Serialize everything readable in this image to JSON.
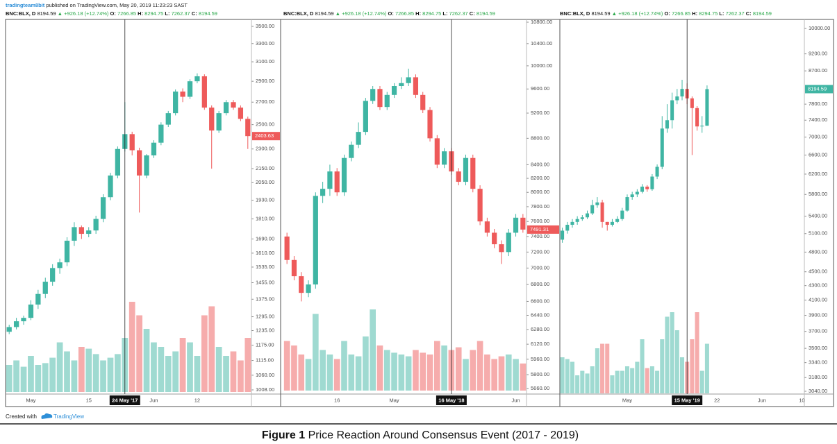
{
  "header": {
    "publisher": "tradingteam8bit",
    "published": "published on TradingView.com, May 20, 2019 11:23:23 SAST"
  },
  "chart_data": [
    {
      "type": "candlestick",
      "legend": {
        "symbol": "BNC:BLX, D",
        "last": "8194.59",
        "change": "+926.18 (+12.74%)",
        "ohlc": [
          {
            "label": "O:",
            "value": "7266.85"
          },
          {
            "label": "H:",
            "value": "8294.75"
          },
          {
            "label": "L:",
            "value": "7262.37"
          },
          {
            "label": "C:",
            "value": "8194.59"
          }
        ]
      },
      "open": [
        1230,
        1250,
        1275,
        1290,
        1350,
        1400,
        1460,
        1530,
        1560,
        1680,
        1760,
        1720,
        1740,
        1810,
        1950,
        2100,
        2300,
        2420,
        2290,
        2100,
        2250,
        2350,
        2500,
        2600,
        2800,
        2750,
        2900,
        2950,
        2650,
        2450,
        2600,
        2700,
        2650,
        2550
      ],
      "high": [
        1260,
        1290,
        1300,
        1370,
        1420,
        1480,
        1550,
        1580,
        1700,
        1790,
        1770,
        1760,
        1830,
        1970,
        2120,
        2320,
        2700,
        2440,
        2310,
        2260,
        2370,
        2520,
        2620,
        2820,
        2830,
        2920,
        2980,
        2970,
        2670,
        2620,
        2720,
        2720,
        2670,
        2570
      ],
      "low": [
        1220,
        1240,
        1260,
        1280,
        1330,
        1380,
        1440,
        1500,
        1540,
        1650,
        1690,
        1700,
        1720,
        1790,
        1930,
        2080,
        2280,
        2250,
        1850,
        2080,
        2230,
        2330,
        2480,
        2580,
        2700,
        2730,
        2880,
        2630,
        2150,
        2430,
        2580,
        2630,
        2530,
        2300
      ],
      "close": [
        1250,
        1275,
        1290,
        1350,
        1400,
        1460,
        1530,
        1560,
        1680,
        1760,
        1720,
        1740,
        1810,
        1950,
        2100,
        2300,
        2420,
        2290,
        2100,
        2250,
        2350,
        2500,
        2600,
        2800,
        2750,
        2900,
        2950,
        2650,
        2450,
        2600,
        2700,
        2650,
        2550,
        2403.63
      ],
      "volume": [
        30,
        35,
        28,
        40,
        30,
        32,
        38,
        55,
        45,
        35,
        50,
        48,
        42,
        35,
        38,
        42,
        60,
        100,
        85,
        70,
        55,
        50,
        40,
        45,
        60,
        55,
        40,
        85,
        95,
        50,
        40,
        45,
        35,
        60
      ],
      "last_label": {
        "value": 2403.63,
        "label": "2403.63"
      },
      "event": {
        "index": 16,
        "label": "24 May '17"
      },
      "xlabels": [
        {
          "index": 3,
          "label": "May"
        },
        {
          "index": 11,
          "label": "15"
        },
        {
          "index": 20,
          "label": "Jun"
        },
        {
          "index": 26,
          "label": "12"
        }
      ],
      "log_scale": true,
      "ylim": [
        1008,
        3500
      ],
      "yticks": [
        {
          "value": 3500,
          "label": "3500.00"
        },
        {
          "value": 3300,
          "label": "3300.00"
        },
        {
          "value": 3100,
          "label": "3100.00"
        },
        {
          "value": 2900,
          "label": "2900.00"
        },
        {
          "value": 2700,
          "label": "2700.00"
        },
        {
          "value": 2500,
          "label": "2500.00"
        },
        {
          "value": 2300,
          "label": "2300.00"
        },
        {
          "value": 2150,
          "label": "2150.00"
        },
        {
          "value": 2050,
          "label": "2050.00"
        },
        {
          "value": 1930,
          "label": "1930.00"
        },
        {
          "value": 1810,
          "label": "1810.00"
        },
        {
          "value": 1690,
          "label": "1690.00"
        },
        {
          "value": 1610,
          "label": "1610.00"
        },
        {
          "value": 1535,
          "label": "1535.00"
        },
        {
          "value": 1455,
          "label": "1455.00"
        },
        {
          "value": 1375,
          "label": "1375.00"
        },
        {
          "value": 1295,
          "label": "1295.00"
        },
        {
          "value": 1235,
          "label": "1235.00"
        },
        {
          "value": 1175,
          "label": "1175.00"
        },
        {
          "value": 1115,
          "label": "1115.00"
        },
        {
          "value": 1060,
          "label": "1060.00"
        },
        {
          "value": 1008,
          "label": "1008.00"
        }
      ],
      "up_color": "#3fb5a3",
      "down_color": "#ee5a5a"
    },
    {
      "type": "candlestick",
      "legend": {
        "symbol": "BNC:BLX, D",
        "last": "8194.59",
        "change": "+926.18 (+12.74%)",
        "ohlc": [
          {
            "label": "O:",
            "value": "7266.85"
          },
          {
            "label": "H:",
            "value": "8294.75"
          },
          {
            "label": "L:",
            "value": "7262.37"
          },
          {
            "label": "C:",
            "value": "8194.59"
          }
        ]
      },
      "open": [
        7400,
        7100,
        6900,
        6700,
        6800,
        7950,
        8050,
        8300,
        8000,
        8500,
        8700,
        8900,
        9400,
        9600,
        9300,
        9500,
        9650,
        9700,
        9800,
        9500,
        9250,
        8800,
        8400,
        8600,
        8300,
        8150,
        8500,
        8050,
        7600,
        7450,
        7300,
        7200,
        7450,
        7650
      ],
      "high": [
        7450,
        7150,
        6950,
        6850,
        8000,
        8150,
        8400,
        8350,
        8550,
        8750,
        9050,
        9450,
        9650,
        9650,
        9550,
        9700,
        9800,
        9950,
        9850,
        9550,
        9300,
        8850,
        8650,
        8650,
        8350,
        8550,
        8550,
        8100,
        7650,
        7500,
        7350,
        7500,
        7700,
        7700
      ],
      "low": [
        7050,
        6850,
        6600,
        6650,
        6750,
        7850,
        7950,
        7950,
        7950,
        8450,
        8650,
        8850,
        9350,
        9250,
        9250,
        9450,
        9600,
        9650,
        9450,
        9200,
        8750,
        8350,
        8350,
        8250,
        8100,
        8100,
        8000,
        7550,
        7400,
        7250,
        7050,
        7150,
        7400,
        7450
      ],
      "close": [
        7100,
        6900,
        6700,
        6800,
        7950,
        8050,
        8300,
        8000,
        8500,
        8700,
        8900,
        9400,
        9600,
        9300,
        9500,
        9650,
        9700,
        9800,
        9500,
        9250,
        8800,
        8400,
        8600,
        8300,
        8150,
        8500,
        8050,
        7600,
        7450,
        7300,
        7200,
        7450,
        7650,
        7491.31
      ],
      "volume": [
        55,
        50,
        40,
        35,
        85,
        45,
        40,
        35,
        55,
        40,
        38,
        60,
        90,
        50,
        45,
        42,
        40,
        38,
        45,
        42,
        40,
        55,
        50,
        45,
        48,
        35,
        45,
        55,
        40,
        35,
        38,
        40,
        35,
        30
      ],
      "last_label": {
        "value": 7491.31,
        "label": "7491.31"
      },
      "event": {
        "index": 23,
        "label": "16 May '18"
      },
      "xlabels": [
        {
          "index": 7,
          "label": "16"
        },
        {
          "index": 15,
          "label": "May"
        },
        {
          "index": 32,
          "label": "Jun"
        }
      ],
      "log_scale": true,
      "ylim": [
        5660,
        10800
      ],
      "yticks": [
        {
          "value": 10800,
          "label": "10800.00"
        },
        {
          "value": 10400,
          "label": "10400.00"
        },
        {
          "value": 10000,
          "label": "10000.00"
        },
        {
          "value": 9600,
          "label": "9600.00"
        },
        {
          "value": 9200,
          "label": "9200.00"
        },
        {
          "value": 8800,
          "label": "8800.00"
        },
        {
          "value": 8400,
          "label": "8400.00"
        },
        {
          "value": 8200,
          "label": "8200.00"
        },
        {
          "value": 8000,
          "label": "8000.00"
        },
        {
          "value": 7800,
          "label": "7800.00"
        },
        {
          "value": 7600,
          "label": "7600.00"
        },
        {
          "value": 7400,
          "label": "7400.00"
        },
        {
          "value": 7200,
          "label": "7200.00"
        },
        {
          "value": 7000,
          "label": "7000.00"
        },
        {
          "value": 6800,
          "label": "6800.00"
        },
        {
          "value": 6600,
          "label": "6600.00"
        },
        {
          "value": 6440,
          "label": "6440.00"
        },
        {
          "value": 6280,
          "label": "6280.00"
        },
        {
          "value": 6120,
          "label": "6120.00"
        },
        {
          "value": 5960,
          "label": "5960.00"
        },
        {
          "value": 5800,
          "label": "5800.00"
        },
        {
          "value": 5660,
          "label": "5660.00"
        }
      ],
      "up_color": "#3fb5a3",
      "down_color": "#ee5a5a"
    },
    {
      "type": "candlestick",
      "legend": {
        "symbol": "BNC:BLX, D",
        "last": "8194.59",
        "change": "+926.18 (+12.74%)",
        "ohlc": [
          {
            "label": "O:",
            "value": "7266.85"
          },
          {
            "label": "H:",
            "value": "8294.75"
          },
          {
            "label": "L:",
            "value": "7262.37"
          },
          {
            "label": "C:",
            "value": "8194.59"
          }
        ]
      },
      "open": [
        5000,
        5150,
        5250,
        5300,
        5350,
        5380,
        5450,
        5600,
        5650,
        5300,
        5250,
        5300,
        5350,
        5500,
        5750,
        5800,
        5850,
        5950,
        5900,
        6150,
        6350,
        7200,
        7400,
        7900,
        8000,
        8200,
        7950,
        7700,
        7250,
        7266.85
      ],
      "high": [
        5200,
        5300,
        5350,
        5400,
        5420,
        5500,
        5700,
        5750,
        5700,
        5300,
        5350,
        5400,
        5550,
        5800,
        5850,
        5900,
        6000,
        5980,
        6200,
        6400,
        7500,
        7800,
        8100,
        8200,
        8450,
        8350,
        8000,
        7750,
        7500,
        8294.75
      ],
      "low": [
        4950,
        5100,
        5200,
        5250,
        5320,
        5350,
        5420,
        5550,
        5200,
        5150,
        5220,
        5280,
        5320,
        5480,
        5700,
        5750,
        5820,
        5850,
        5870,
        6100,
        6300,
        7100,
        7200,
        7800,
        7900,
        7800,
        6600,
        7150,
        7100,
        7262.37
      ],
      "close": [
        5150,
        5250,
        5300,
        5350,
        5380,
        5450,
        5600,
        5650,
        5300,
        5250,
        5300,
        5350,
        5500,
        5750,
        5800,
        5850,
        5950,
        5900,
        6150,
        6350,
        7200,
        7400,
        7900,
        8000,
        8200,
        7950,
        7700,
        7250,
        7267,
        8194.59
      ],
      "volume": [
        40,
        38,
        35,
        20,
        25,
        22,
        30,
        50,
        55,
        55,
        20,
        25,
        25,
        30,
        28,
        35,
        60,
        28,
        30,
        25,
        60,
        85,
        90,
        70,
        40,
        35,
        60,
        90,
        25,
        55
      ],
      "last_label": {
        "value": 8194.59,
        "label": "8194.59"
      },
      "event": {
        "index": 25,
        "label": "15 May '19"
      },
      "xlabels": [
        {
          "index": 13,
          "label": "May"
        },
        {
          "index": 31,
          "label": "22"
        },
        {
          "index": 40,
          "label": "Jun"
        },
        {
          "index": 48,
          "label": "10"
        }
      ],
      "log_scale": true,
      "ylim": [
        3040,
        10000
      ],
      "yticks": [
        {
          "value": 10000,
          "label": "10000.00"
        },
        {
          "value": 9200,
          "label": "9200.00"
        },
        {
          "value": 8700,
          "label": "8700.00"
        },
        {
          "value": 7800,
          "label": "7800.00"
        },
        {
          "value": 7400,
          "label": "7400.00"
        },
        {
          "value": 7000,
          "label": "7000.00"
        },
        {
          "value": 6600,
          "label": "6600.00"
        },
        {
          "value": 6200,
          "label": "6200.00"
        },
        {
          "value": 5800,
          "label": "5800.00"
        },
        {
          "value": 5400,
          "label": "5400.00"
        },
        {
          "value": 5100,
          "label": "5100.00"
        },
        {
          "value": 4800,
          "label": "4800.00"
        },
        {
          "value": 4500,
          "label": "4500.00"
        },
        {
          "value": 4300,
          "label": "4300.00"
        },
        {
          "value": 4100,
          "label": "4100.00"
        },
        {
          "value": 3900,
          "label": "3900.00"
        },
        {
          "value": 3700,
          "label": "3700.00"
        },
        {
          "value": 3500,
          "label": "3500.00"
        },
        {
          "value": 3340,
          "label": "3340.00"
        },
        {
          "value": 3180,
          "label": "3180.00"
        },
        {
          "value": 3040,
          "label": "3040.00"
        }
      ],
      "up_color": "#3fb5a3",
      "down_color": "#ee5a5a"
    }
  ],
  "footer": {
    "created": "Created with",
    "brand": "TradingView"
  },
  "caption": {
    "bold": "Figure 1",
    "text": "Price Reaction Around Consensus Event (2017 - 2019)"
  }
}
